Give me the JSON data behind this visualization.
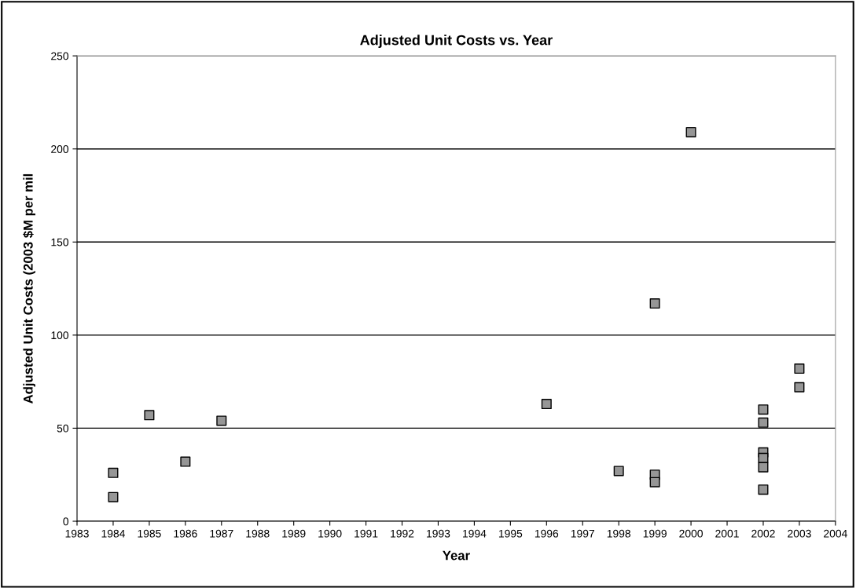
{
  "chart_data": {
    "type": "scatter",
    "title": "Adjusted Unit Costs vs. Year",
    "xlabel": "Year",
    "ylabel": "Adjusted Unit Costs (2003 $M per mil",
    "x": [
      1984,
      1984,
      1985,
      1986,
      1987,
      1996,
      1998,
      1999,
      1999,
      1999,
      2000,
      2002,
      2002,
      2002,
      2002,
      2002,
      2002,
      2003,
      2003
    ],
    "values": [
      26,
      13,
      57,
      32,
      54,
      63,
      27,
      117,
      25,
      21,
      209,
      60,
      53,
      37,
      34,
      29,
      17,
      82,
      72
    ],
    "color": "#969696",
    "marker": "square",
    "xlim": [
      1983,
      2004
    ],
    "xticks": [
      1983,
      1984,
      1985,
      1986,
      1987,
      1988,
      1989,
      1990,
      1991,
      1992,
      1993,
      1994,
      1995,
      1996,
      1997,
      1998,
      1999,
      2000,
      2001,
      2002,
      2003,
      2004
    ],
    "ylim": [
      0,
      250
    ],
    "yticks": [
      0,
      50,
      100,
      150,
      200,
      250
    ],
    "grid": "y"
  }
}
